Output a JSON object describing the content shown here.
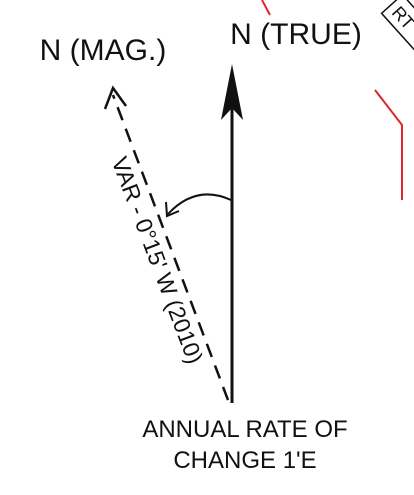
{
  "labels": {
    "true_north": "N (TRUE)",
    "magnetic_north": "N (MAG.)",
    "variation": "VAR - 0°15' W (2010)",
    "annual_rate_line1": "ANNUAL RATE OF",
    "annual_rate_line2": "CHANGE 1'E",
    "corner_fragment": "RT"
  },
  "colors": {
    "line": "#111111",
    "accent": "#e0262b"
  }
}
